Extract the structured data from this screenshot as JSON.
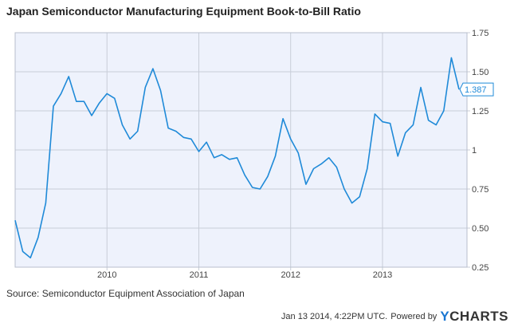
{
  "chart_data": {
    "type": "line",
    "title": "Japan Semiconductor Manufacturing Equipment Book-to-Bill Ratio",
    "xlabel": "",
    "ylabel": "",
    "x_start": 2009.0,
    "x_step": 0.0833333,
    "xlim": [
      2009.0,
      2013.92
    ],
    "ylim": [
      0.25,
      1.75
    ],
    "y_ticks": [
      0.25,
      0.5,
      0.75,
      1,
      1.25,
      1.5,
      1.75
    ],
    "y_tick_labels": [
      "0.25",
      "0.50",
      "0.75",
      "1",
      "1.25",
      "1.50",
      "1.75"
    ],
    "x_ticks": [
      2010,
      2011,
      2012,
      2013
    ],
    "x_tick_labels": [
      "2010",
      "2011",
      "2012",
      "2013"
    ],
    "grid": true,
    "series": [
      {
        "values": [
          0.55,
          0.35,
          0.31,
          0.44,
          0.66,
          1.28,
          1.36,
          1.47,
          1.31,
          1.31,
          1.22,
          1.3,
          1.36,
          1.33,
          1.16,
          1.07,
          1.12,
          1.4,
          1.52,
          1.38,
          1.14,
          1.12,
          1.08,
          1.07,
          0.99,
          1.05,
          0.95,
          0.97,
          0.94,
          0.95,
          0.84,
          0.76,
          0.75,
          0.83,
          0.96,
          1.2,
          1.07,
          0.98,
          0.78,
          0.88,
          0.91,
          0.95,
          0.89,
          0.75,
          0.66,
          0.7,
          0.88,
          1.23,
          1.18,
          1.17,
          0.96,
          1.11,
          1.16,
          1.4,
          1.19,
          1.16,
          1.25,
          1.59,
          1.387
        ]
      }
    ],
    "last_value_label": "1.387",
    "line_color": "#1f8ad8",
    "plot_background": "#eef2fc",
    "source": "Source: Semiconductor Equipment Association of Japan",
    "timestamp": "Jan 13 2014, 4:22PM UTC.",
    "powered_by": "Powered by",
    "logo_y": "Y",
    "logo_rest": "CHARTS"
  }
}
